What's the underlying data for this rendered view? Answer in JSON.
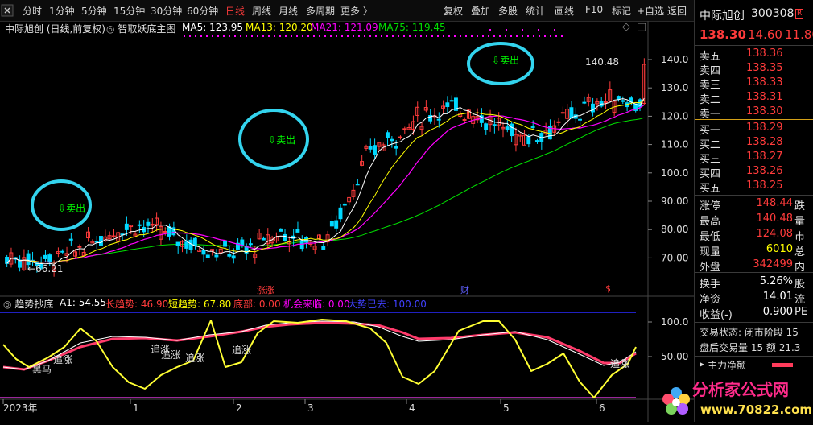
{
  "toolbar": {
    "periods": [
      "分时",
      "1分钟",
      "5分钟",
      "15分钟",
      "30分钟",
      "60分钟",
      "日线",
      "周线",
      "月线",
      "多周期",
      "更多 〉"
    ],
    "active_period": "日线",
    "tools": [
      "复权",
      "叠加",
      "多股",
      "统计",
      "画线",
      "F10",
      "标记",
      "+自选",
      "返回"
    ]
  },
  "main": {
    "title": "中际旭创 (日线,前复权)",
    "indicator": "智取妖底主图",
    "ma5": "MA5: 123.95",
    "ma13": "MA13: 120.20",
    "ma21": "MA21: 121.09",
    "ma75": "MA75: 119.45",
    "y_ticks": [
      "140.0",
      "130.0",
      "120.0",
      "110.0",
      "100.0",
      "90.00",
      "80.00",
      "70.00"
    ],
    "high_label": "140.48",
    "low_label": "66.21",
    "sell_label": "卖出",
    "event_labels": [
      "涨",
      "财",
      "$"
    ],
    "colors": {
      "ma5": "#ffffff",
      "ma13": "#ffff00",
      "ma21": "#ff00ff",
      "ma75": "#00e000",
      "up": "#ff3b3b",
      "down": "#00d8ff"
    }
  },
  "sub": {
    "name": "趋势抄底",
    "a1": "A1: 54.55",
    "long": "长趋势: 46.90",
    "short": "短趋势: 67.80",
    "bottom": "底部: 0.00",
    "chance": "机会来临: 0.00",
    "big": "大势已去: 100.00",
    "y_ticks": [
      "100.0",
      "50.00"
    ],
    "labels": [
      "黑马",
      "追涨",
      "追涨",
      "追涨",
      "追涨",
      "追涨",
      "追涨"
    ]
  },
  "x_axis": [
    "2023年",
    "1",
    "2",
    "3",
    "4",
    "5",
    "6"
  ],
  "right": {
    "stock_name": "中际旭创",
    "code": "300308",
    "badge": "R",
    "price": "138.30",
    "change": "14.60",
    "pct": "11.80",
    "asks": [
      {
        "label": "卖五",
        "price": "138.36"
      },
      {
        "label": "卖四",
        "price": "138.35"
      },
      {
        "label": "卖三",
        "price": "138.33"
      },
      {
        "label": "卖二",
        "price": "138.31"
      },
      {
        "label": "卖一",
        "price": "138.30"
      }
    ],
    "bids": [
      {
        "label": "买一",
        "price": "138.29"
      },
      {
        "label": "买二",
        "price": "138.28"
      },
      {
        "label": "买三",
        "price": "138.27"
      },
      {
        "label": "买四",
        "price": "138.26"
      },
      {
        "label": "买五",
        "price": "138.25"
      }
    ],
    "stats": [
      {
        "label": "涨停",
        "value": "148.44",
        "extra": "跌"
      },
      {
        "label": "最高",
        "value": "140.48",
        "extra": "量"
      },
      {
        "label": "最低",
        "value": "124.08",
        "extra": "市"
      },
      {
        "label": "现量",
        "value": "6010",
        "extra": "总"
      },
      {
        "label": "外盘",
        "value": "342499",
        "extra": "内"
      }
    ],
    "fin": [
      {
        "label": "换手",
        "value": "5.26%",
        "extra": "股"
      },
      {
        "label": "净资",
        "value": "14.01",
        "extra": "流"
      },
      {
        "label": "收益(-)",
        "value": "0.900",
        "extra": "PE"
      }
    ],
    "trade_status": "交易状态: 闭市阶段 15",
    "after_hours": "盘后交易量 15 额 21.3",
    "fund_flow": "主力净额"
  },
  "watermark": {
    "text": "分析家公式网",
    "url": "www.70822.com"
  }
}
